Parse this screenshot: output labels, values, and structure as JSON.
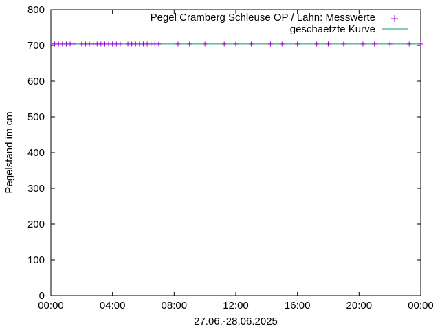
{
  "chart_data": {
    "type": "line",
    "xlabel": "27.06.-28.06.2025",
    "ylabel": "Pegelstand im cm",
    "ylim": [
      0,
      800
    ],
    "yticks": [
      0,
      100,
      200,
      300,
      400,
      500,
      600,
      700,
      800
    ],
    "xlim_hours": [
      0,
      24
    ],
    "xticks": [
      {
        "hour": 0,
        "label": "00:00"
      },
      {
        "hour": 4,
        "label": "04:00"
      },
      {
        "hour": 8,
        "label": "08:00"
      },
      {
        "hour": 12,
        "label": "12:00"
      },
      {
        "hour": 16,
        "label": "16:00"
      },
      {
        "hour": 20,
        "label": "20:00"
      },
      {
        "hour": 24,
        "label": "00:00"
      }
    ],
    "grid": false,
    "legend_position": "top-right",
    "series": [
      {
        "name": "Pegel Cramberg Schleuse OP / Lahn: Messwerte",
        "style": "points",
        "marker": "+",
        "color": "#9400d3",
        "x_hours": [
          0.25,
          0.5,
          0.75,
          1.0,
          1.25,
          1.5,
          2.0,
          2.25,
          2.5,
          2.75,
          3.0,
          3.25,
          3.5,
          3.75,
          4.0,
          4.25,
          4.5,
          5.0,
          5.25,
          5.5,
          5.75,
          6.0,
          6.25,
          6.5,
          6.75,
          7.0,
          8.25,
          9.0,
          10.0,
          11.25,
          12.0,
          13.0,
          14.25,
          15.0,
          16.0,
          17.25,
          18.0,
          19.0,
          20.25,
          21.0,
          22.0,
          23.25,
          24.0
        ],
        "y": [
          704,
          704,
          704,
          704,
          704,
          704,
          704,
          704,
          704,
          704,
          704,
          704,
          704,
          704,
          704,
          704,
          704,
          704,
          704,
          704,
          704,
          704,
          704,
          704,
          704,
          704,
          704,
          704,
          704,
          704,
          704,
          704,
          704,
          704,
          704,
          704,
          704,
          704,
          704,
          704,
          704,
          704,
          704
        ]
      },
      {
        "name": "geschaetzte Kurve",
        "style": "line",
        "color": "#009e73",
        "x_hours": [
          0,
          24
        ],
        "y": [
          704,
          704
        ]
      }
    ]
  }
}
